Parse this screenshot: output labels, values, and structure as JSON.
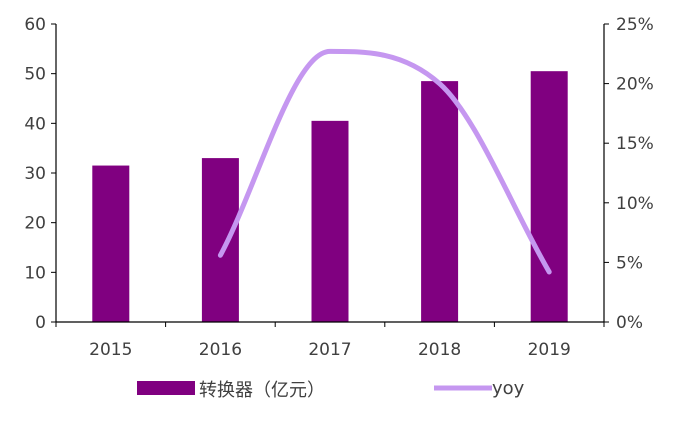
{
  "chart_data": {
    "type": "bar+line",
    "categories": [
      "2015",
      "2016",
      "2017",
      "2018",
      "2019"
    ],
    "series": [
      {
        "name": "转换器（亿元）",
        "type": "bar",
        "axis": "left",
        "color": "#800080",
        "values": [
          31.5,
          33.0,
          40.5,
          48.5,
          50.5
        ]
      },
      {
        "name": "yoy",
        "type": "line",
        "axis": "right",
        "smooth": true,
        "color": "#c597f0",
        "values": [
          null,
          5.6,
          22.7,
          20.0,
          4.2
        ]
      }
    ],
    "left_axis": {
      "ylim": [
        0,
        60
      ],
      "ticks": [
        "0",
        "10",
        "20",
        "30",
        "40",
        "50",
        "60"
      ]
    },
    "right_axis": {
      "ylim": [
        0,
        25
      ],
      "ticks": [
        "0%",
        "5%",
        "10%",
        "15%",
        "20%",
        "25%"
      ]
    },
    "grid": false,
    "legend_position": "bottom"
  }
}
